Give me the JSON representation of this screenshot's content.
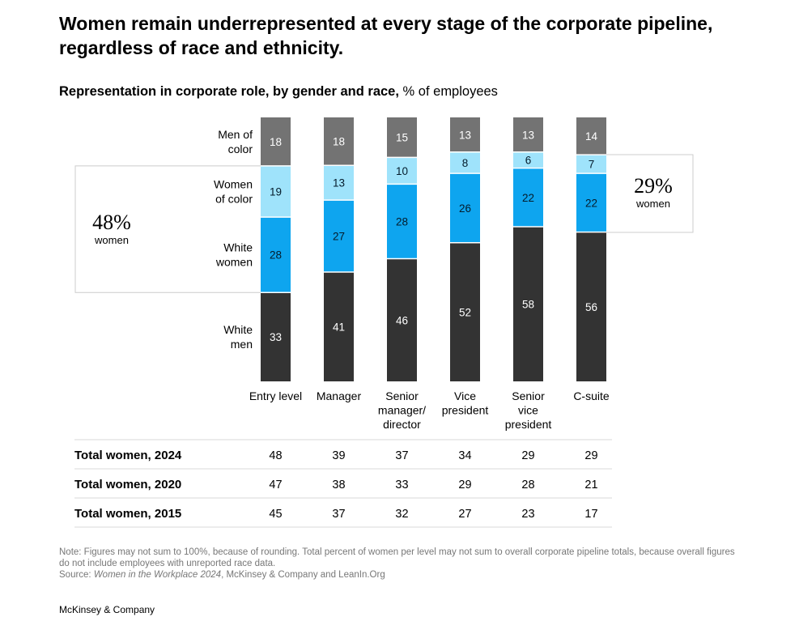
{
  "title": "Women remain underrepresented at every stage of the corporate pipeline, regardless of race and ethnicity.",
  "subtitle": {
    "bold": "Representation in corporate role, by gender and race,",
    "rest": " % of employees"
  },
  "chart_data": {
    "type": "bar",
    "stacked": true,
    "categories": [
      [
        "Entry level"
      ],
      [
        "Manager"
      ],
      [
        "Senior",
        "manager/",
        "director"
      ],
      [
        "Vice",
        "president"
      ],
      [
        "Senior",
        "vice",
        "president"
      ],
      [
        "C-suite"
      ]
    ],
    "series": [
      {
        "name": "White men",
        "label_lines": [
          "White",
          "men"
        ],
        "color": "#333333",
        "text_color": "#ffffff",
        "values": [
          33,
          41,
          46,
          52,
          58,
          56
        ]
      },
      {
        "name": "White women",
        "label_lines": [
          "White",
          "women"
        ],
        "color": "#0ea5ef",
        "text_color": "#051c2c",
        "values": [
          28,
          27,
          28,
          26,
          22,
          22
        ]
      },
      {
        "name": "Women of color",
        "label_lines": [
          "Women",
          "of color"
        ],
        "color": "#9fe3fb",
        "text_color": "#051c2c",
        "values": [
          19,
          13,
          10,
          8,
          6,
          7
        ]
      },
      {
        "name": "Men of color",
        "label_lines": [
          "Men of",
          "color"
        ],
        "color": "#737373",
        "text_color": "#ffffff",
        "values": [
          18,
          18,
          15,
          13,
          13,
          14
        ]
      }
    ],
    "callouts": [
      {
        "value": "48%",
        "label": "women",
        "side": "left",
        "bar": "Entry level"
      },
      {
        "value": "29%",
        "label": "women",
        "side": "right",
        "bar": "C-suite"
      }
    ],
    "table": [
      {
        "label": "Total women, 2024",
        "values": [
          48,
          39,
          37,
          34,
          29,
          29
        ]
      },
      {
        "label": "Total women, 2020",
        "values": [
          47,
          38,
          33,
          29,
          28,
          21
        ]
      },
      {
        "label": "Total women, 2015",
        "values": [
          45,
          37,
          32,
          27,
          23,
          17
        ]
      }
    ]
  },
  "note": {
    "text": "Note: Figures may not sum to 100%, because of rounding. Total percent of women per level may not sum to overall corporate pipeline totals, because overall figures do not include employees with unreported race data.",
    "source_prefix": "Source: ",
    "source_italic": "Women in the Workplace 2024",
    "source_rest": ", McKinsey & Company and LeanIn.Org"
  },
  "footer": "McKinsey & Company"
}
